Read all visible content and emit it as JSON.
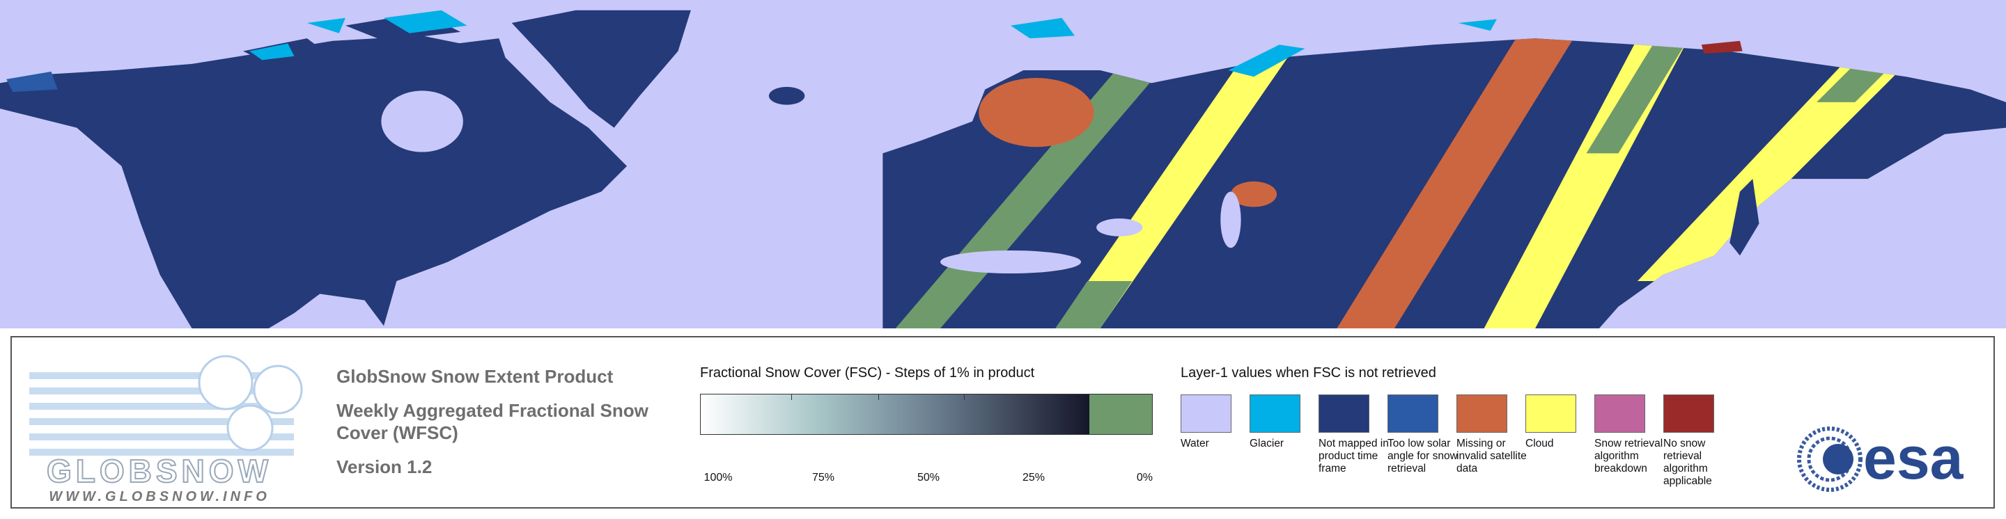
{
  "header": {
    "product": "GlobSnow Snow Extent Product",
    "subtitle": "Weekly Aggregated Fractional Snow Cover (WFSC)",
    "version": "Version 1.2"
  },
  "logo": {
    "name": "GLOBSNOW",
    "url": "WWW.GLOBSNOW.INFO"
  },
  "colorbar": {
    "title": "Fractional Snow Cover (FSC) - Steps of 1% in product",
    "labels": [
      "100%",
      "75%",
      "50%",
      "25%",
      "0%"
    ],
    "zero_color": "#6f9a6c"
  },
  "layer1": {
    "title": "Layer-1 values when FSC is not retrieved",
    "items": [
      {
        "label": "Water",
        "color": "#c8c8fa"
      },
      {
        "label": "Glacier",
        "color": "#00b0e6"
      },
      {
        "label": "Not mapped in product time frame",
        "color": "#253a78"
      },
      {
        "label": "Too low solar angle for snow retrieval",
        "color": "#2b5aa6"
      },
      {
        "label": "Missing or invalid satellite data",
        "color": "#cc6640"
      },
      {
        "label": "Cloud",
        "color": "#ffff66"
      },
      {
        "label": "Snow retrieval algorithm breakdown",
        "color": "#c0649e"
      },
      {
        "label": "No snow retrieval algorithm applicable",
        "color": "#9a2a2a"
      }
    ]
  },
  "esa": "esa"
}
